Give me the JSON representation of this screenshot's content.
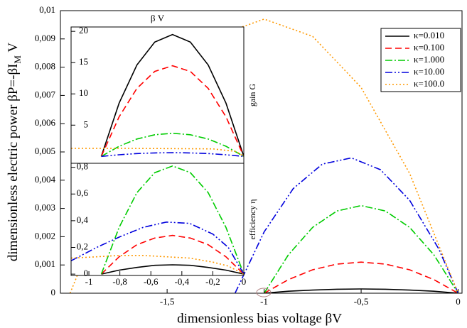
{
  "chart_data": [
    {
      "type": "line",
      "xlabel": "dimensionless bias voltage βV",
      "ylabel_parts": [
        "dimensionless electric power βP=-βI",
        "M",
        " V"
      ],
      "xlim": [
        -2.05,
        0.02
      ],
      "ylim": [
        0,
        0.01
      ],
      "xticks": [
        {
          "value": -1.5,
          "label": "-1,5"
        },
        -1,
        {
          "value": -0.5,
          "label": "-0,5"
        },
        0
      ],
      "yticks": [
        0,
        {
          "value": 0.001,
          "label": "0,001"
        },
        {
          "value": 0.002,
          "label": "0,002"
        },
        {
          "value": 0.003,
          "label": "0,003"
        },
        {
          "value": 0.004,
          "label": "0,004"
        },
        {
          "value": 0.005,
          "label": "0,005"
        },
        {
          "value": 0.006,
          "label": "0,006"
        },
        {
          "value": 0.007,
          "label": "0,007"
        },
        {
          "value": 0.008,
          "label": "0,008"
        },
        {
          "value": 0.009,
          "label": "0,009"
        },
        {
          "value": 0.01,
          "label": "0,01"
        }
      ],
      "legend": "upper right",
      "series": [
        {
          "name": "κ=0.010",
          "color": "#000000",
          "linestyle": "solid",
          "x": [
            -1,
            -0.875,
            -0.75,
            -0.625,
            -0.5,
            -0.375,
            -0.25,
            -0.125,
            0
          ],
          "values": [
            0,
            7e-05,
            0.00011,
            0.00014,
            0.00015,
            0.00014,
            0.00011,
            7e-05,
            0
          ]
        },
        {
          "name": "κ=0.100",
          "color": "#ff0000",
          "linestyle": "dashed",
          "x": [
            -1,
            -0.875,
            -0.75,
            -0.625,
            -0.5,
            -0.375,
            -0.25,
            -0.125,
            0
          ],
          "values": [
            0,
            0.00048,
            0.00083,
            0.00103,
            0.0011,
            0.00103,
            0.00083,
            0.00048,
            0
          ]
        },
        {
          "name": "κ=1.000",
          "color": "#00cc00",
          "linestyle": "dash-dot",
          "x": [
            -1,
            -0.875,
            -0.75,
            -0.625,
            -0.5,
            -0.375,
            -0.25,
            -0.125,
            0
          ],
          "values": [
            0,
            0.00136,
            0.00233,
            0.00291,
            0.0031,
            0.00291,
            0.00233,
            0.00136,
            0
          ]
        },
        {
          "name": "κ=10.00",
          "color": "#0000dd",
          "linestyle": "dash-dot-dot",
          "x": [
            -1.15,
            -1,
            -0.85,
            -0.7,
            -0.55,
            -0.4,
            -0.25,
            -0.1,
            0
          ],
          "values": [
            0,
            0.00217,
            0.0037,
            0.00457,
            0.00479,
            0.00437,
            0.00329,
            0.00157,
            0
          ]
        },
        {
          "name": "κ=100.0",
          "color": "#ff9900",
          "linestyle": "dotted",
          "x": [
            -2,
            -1.75,
            -1.5,
            -1.25,
            -1,
            -0.75,
            -0.5,
            -0.25,
            0
          ],
          "values": [
            0,
            0.00424,
            0.00728,
            0.00909,
            0.0097,
            0.00909,
            0.00728,
            0.00424,
            0
          ]
        }
      ]
    },
    {
      "type": "line",
      "title": "β V",
      "ylabel": "gain G",
      "xlim": [
        -1.115,
        0
      ],
      "ylim": [
        -1.1,
        20.7
      ],
      "yticks": [
        5,
        10,
        15,
        20
      ],
      "series": [
        {
          "color": "#000000",
          "linestyle": "solid",
          "x": [
            -0.92,
            -0.805,
            -0.69,
            -0.575,
            -0.46,
            -0.345,
            -0.23,
            -0.115,
            0
          ],
          "values": [
            0,
            8.53,
            14.63,
            18.28,
            19.5,
            18.28,
            14.63,
            8.53,
            0
          ]
        },
        {
          "color": "#ff0000",
          "linestyle": "dashed",
          "x": [
            -0.92,
            -0.805,
            -0.69,
            -0.575,
            -0.46,
            -0.345,
            -0.23,
            -0.115,
            0
          ],
          "values": [
            0,
            6.34,
            10.88,
            13.59,
            14.5,
            13.59,
            10.88,
            6.34,
            0
          ]
        },
        {
          "color": "#00cc00",
          "linestyle": "dash-dot",
          "x": [
            -0.92,
            -0.805,
            -0.69,
            -0.575,
            -0.46,
            -0.345,
            -0.23,
            -0.115,
            0
          ],
          "values": [
            0,
            1.62,
            2.78,
            3.47,
            3.7,
            3.47,
            2.78,
            1.62,
            0
          ]
        },
        {
          "color": "#0000dd",
          "linestyle": "dash-dot-dot",
          "x": [
            -0.92,
            -0.805,
            -0.69,
            -0.575,
            -0.46,
            -0.345,
            -0.23,
            -0.115,
            0
          ],
          "values": [
            0,
            0.26,
            0.45,
            0.56,
            0.6,
            0.56,
            0.45,
            0.26,
            0
          ]
        },
        {
          "color": "#ff9900",
          "linestyle": "dotted",
          "x": [
            -1.115,
            -0.8,
            -0.5,
            -0.2,
            -0.05,
            0
          ],
          "values": [
            1.3,
            1.3,
            1.25,
            1.2,
            0.8,
            0
          ]
        }
      ]
    },
    {
      "type": "line",
      "ylabel": "efficiency η",
      "xlim": [
        -1.115,
        0
      ],
      "ylim": [
        -0.01,
        0.83
      ],
      "xticks": [
        -1,
        {
          "value": -0.8,
          "label": "-0,8"
        },
        {
          "value": -0.6,
          "label": "-0,6"
        },
        {
          "value": -0.4,
          "label": "-0,4"
        },
        {
          "value": -0.2,
          "label": "-0,2"
        },
        0
      ],
      "yticks": [
        0,
        {
          "value": 0.2,
          "label": "0,2"
        },
        {
          "value": 0.4,
          "label": "0,4"
        },
        {
          "value": 0.6,
          "label": "0,6"
        },
        {
          "value": 0.8,
          "label": "0,8"
        }
      ],
      "series": [
        {
          "color": "#000000",
          "linestyle": "solid",
          "x": [
            -0.92,
            -0.805,
            -0.69,
            -0.575,
            -0.46,
            -0.345,
            -0.23,
            -0.115,
            0
          ],
          "values": [
            0,
            0.03,
            0.05,
            0.066,
            0.07,
            0.066,
            0.05,
            0.03,
            0
          ]
        },
        {
          "color": "#ff0000",
          "linestyle": "dashed",
          "x": [
            -0.92,
            -0.805,
            -0.69,
            -0.575,
            -0.46,
            -0.345,
            -0.23,
            -0.115,
            0
          ],
          "values": [
            0,
            0.13,
            0.22,
            0.27,
            0.29,
            0.27,
            0.22,
            0.13,
            0
          ]
        },
        {
          "color": "#00cc00",
          "linestyle": "dash-dot",
          "x": [
            -0.92,
            -0.805,
            -0.69,
            -0.575,
            -0.46,
            -0.345,
            -0.23,
            -0.115,
            0
          ],
          "values": [
            0,
            0.35,
            0.61,
            0.76,
            0.81,
            0.76,
            0.61,
            0.35,
            0
          ]
        },
        {
          "color": "#0000dd",
          "linestyle": "dash-dot-dot",
          "x": [
            -1.115,
            -0.95,
            -0.8,
            -0.65,
            -0.5,
            -0.35,
            -0.2,
            -0.1,
            0
          ],
          "values": [
            0.1,
            0.2,
            0.28,
            0.35,
            0.39,
            0.38,
            0.3,
            0.2,
            0
          ]
        },
        {
          "color": "#ff9900",
          "linestyle": "dotted",
          "x": [
            -1.115,
            -0.95,
            -0.8,
            -0.65,
            -0.5,
            -0.35,
            -0.2,
            -0.1,
            0
          ],
          "values": [
            0.12,
            0.13,
            0.14,
            0.14,
            0.13,
            0.12,
            0.09,
            0.06,
            0
          ]
        }
      ]
    }
  ]
}
